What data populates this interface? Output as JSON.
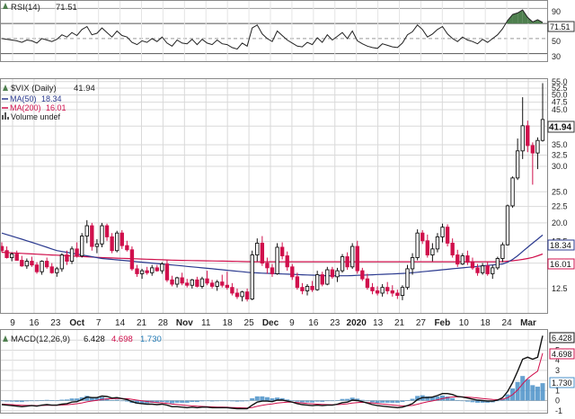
{
  "colors": {
    "grid": "#d9d9d9",
    "frame": "#888888",
    "text": "#222222",
    "bull": "#111111",
    "bear": "#d0104c",
    "ma50": "#2b3a8f",
    "ma200": "#d0104c",
    "rsi_line": "#222222",
    "rsi_fill": "#4e7f4e",
    "macd_line": "#111111",
    "macd_signal": "#d0104c",
    "macd_hist": "#4a90c8",
    "tag_text": "#111111",
    "macd_hist_label": "#1f78b4"
  },
  "rsi": {
    "label": "RSI(14)",
    "value": "71.51",
    "levels": [
      "90",
      "70",
      "50",
      "30"
    ],
    "ylim": [
      20,
      100
    ]
  },
  "price": {
    "symbol": "$VIX (Daily)",
    "value": "41.94",
    "ma50_label": "MA(50)",
    "ma50_value": "18.34",
    "ma200_label": "MA(200)",
    "ma200_value": "16.01",
    "volume_label": "Volume undef",
    "yticks": [
      "55.0",
      "52.5",
      "50.0",
      "47.5",
      "45.0",
      "40.0",
      "35.0",
      "32.5",
      "30.0",
      "25.0",
      "22.5",
      "20.0",
      "17.5",
      "15.0",
      "12.5"
    ],
    "last_tag": "41.94",
    "ma50_tag": "18.34",
    "ma200_tag": "16.01"
  },
  "xaxis": {
    "labels": [
      "9",
      "16",
      "23",
      "Oct",
      "7",
      "14",
      "21",
      "28",
      "Nov",
      "11",
      "18",
      "25",
      "Dec",
      "9",
      "16",
      "23",
      "2020",
      "13",
      "21",
      "27",
      "Feb",
      "10",
      "18",
      "24",
      "Mar"
    ]
  },
  "macd": {
    "label": "MACD(12,26,9)",
    "macd_value": "6.428",
    "signal_value": "4.698",
    "hist_value": "1.730",
    "yticks": [
      "6",
      "5",
      "4",
      "3",
      "2",
      "1",
      "0",
      "-1"
    ],
    "ylim": [
      -1.2,
      7
    ]
  },
  "chart_data": {
    "type": "candlestick",
    "title": "$VIX (Daily)",
    "ylim": [
      10.5,
      56
    ],
    "log_scale": true,
    "x_labels": [
      "9",
      "16",
      "23",
      "Oct",
      "7",
      "14",
      "21",
      "28",
      "Nov",
      "11",
      "18",
      "25",
      "Dec",
      "9",
      "16",
      "23",
      "2020",
      "13",
      "21",
      "27",
      "Feb",
      "10",
      "18",
      "24",
      "Mar"
    ],
    "ohlc": [
      [
        16.9,
        17.4,
        16.2,
        16.4
      ],
      [
        16.4,
        16.9,
        15.5,
        15.6
      ],
      [
        15.6,
        16.2,
        15.2,
        16.0
      ],
      [
        16.0,
        16.4,
        15.3,
        15.3
      ],
      [
        15.3,
        15.8,
        14.6,
        14.7
      ],
      [
        14.7,
        15.5,
        14.4,
        15.2
      ],
      [
        15.2,
        15.7,
        14.6,
        14.8
      ],
      [
        14.8,
        15.1,
        13.9,
        14.1
      ],
      [
        14.1,
        15.3,
        13.8,
        15.2
      ],
      [
        15.2,
        15.6,
        14.4,
        14.6
      ],
      [
        14.6,
        15.0,
        13.9,
        14.0
      ],
      [
        14.0,
        14.6,
        13.6,
        14.4
      ],
      [
        14.4,
        16.1,
        14.1,
        15.9
      ],
      [
        15.9,
        16.4,
        14.8,
        15.2
      ],
      [
        15.2,
        16.9,
        14.9,
        16.6
      ],
      [
        16.6,
        17.4,
        15.6,
        15.8
      ],
      [
        15.8,
        18.6,
        15.6,
        18.2
      ],
      [
        18.2,
        20.4,
        17.3,
        19.6
      ],
      [
        19.6,
        20.0,
        16.4,
        16.9
      ],
      [
        16.9,
        17.8,
        16.1,
        17.2
      ],
      [
        17.2,
        20.0,
        16.8,
        19.6
      ],
      [
        19.6,
        19.9,
        17.6,
        18.1
      ],
      [
        18.1,
        18.6,
        16.1,
        16.4
      ],
      [
        16.4,
        18.9,
        16.2,
        18.6
      ],
      [
        18.6,
        19.0,
        16.6,
        17.0
      ],
      [
        17.0,
        17.6,
        16.3,
        16.5
      ],
      [
        16.5,
        16.9,
        14.2,
        14.4
      ],
      [
        14.4,
        14.8,
        13.6,
        13.9
      ],
      [
        13.9,
        14.4,
        13.4,
        14.2
      ],
      [
        14.2,
        14.6,
        13.8,
        14.0
      ],
      [
        14.0,
        14.8,
        13.7,
        14.5
      ],
      [
        14.5,
        14.8,
        14.1,
        14.2
      ],
      [
        14.2,
        15.1,
        13.9,
        14.9
      ],
      [
        14.9,
        15.3,
        13.1,
        13.3
      ],
      [
        13.3,
        13.7,
        12.7,
        12.9
      ],
      [
        12.9,
        13.6,
        12.6,
        13.5
      ],
      [
        13.5,
        14.0,
        12.8,
        13.0
      ],
      [
        13.0,
        13.4,
        12.6,
        12.8
      ],
      [
        12.8,
        13.4,
        12.5,
        13.3
      ],
      [
        13.3,
        13.6,
        12.6,
        12.7
      ],
      [
        12.7,
        13.6,
        12.5,
        13.4
      ],
      [
        13.4,
        14.2,
        12.8,
        13.0
      ],
      [
        13.0,
        13.3,
        12.5,
        12.7
      ],
      [
        12.7,
        13.3,
        12.3,
        13.1
      ],
      [
        13.1,
        13.8,
        12.6,
        12.8
      ],
      [
        12.8,
        14.1,
        12.4,
        12.6
      ],
      [
        12.6,
        13.0,
        11.9,
        12.1
      ],
      [
        12.1,
        12.5,
        11.6,
        11.8
      ],
      [
        11.8,
        12.3,
        11.4,
        12.2
      ],
      [
        12.2,
        12.5,
        11.4,
        11.6
      ],
      [
        11.6,
        16.4,
        11.5,
        15.9
      ],
      [
        15.9,
        17.9,
        15.2,
        17.3
      ],
      [
        17.3,
        18.2,
        14.7,
        15.0
      ],
      [
        15.0,
        15.6,
        13.9,
        14.5
      ],
      [
        14.5,
        14.9,
        13.6,
        13.9
      ],
      [
        13.9,
        17.3,
        13.8,
        16.8
      ],
      [
        16.8,
        17.4,
        15.4,
        15.8
      ],
      [
        15.8,
        16.3,
        14.2,
        14.6
      ],
      [
        14.6,
        14.9,
        13.3,
        13.6
      ],
      [
        13.6,
        14.0,
        12.4,
        12.6
      ],
      [
        12.6,
        13.0,
        12.0,
        12.3
      ],
      [
        12.3,
        12.9,
        11.9,
        12.7
      ],
      [
        12.7,
        13.2,
        12.2,
        12.4
      ],
      [
        12.4,
        14.2,
        12.3,
        13.8
      ],
      [
        13.8,
        14.1,
        12.7,
        12.9
      ],
      [
        12.9,
        14.6,
        12.8,
        14.3
      ],
      [
        14.3,
        14.6,
        13.4,
        13.6
      ],
      [
        13.6,
        14.5,
        13.1,
        14.2
      ],
      [
        14.2,
        16.0,
        14.0,
        15.7
      ],
      [
        15.7,
        16.2,
        14.3,
        14.6
      ],
      [
        14.6,
        17.3,
        14.4,
        16.9
      ],
      [
        16.9,
        17.6,
        13.9,
        14.2
      ],
      [
        14.2,
        14.5,
        13.2,
        13.4
      ],
      [
        13.4,
        13.9,
        12.4,
        12.6
      ],
      [
        12.6,
        13.0,
        12.0,
        12.3
      ],
      [
        12.3,
        12.7,
        11.9,
        12.1
      ],
      [
        12.1,
        12.9,
        11.8,
        12.6
      ],
      [
        12.6,
        13.1,
        12.0,
        12.3
      ],
      [
        12.3,
        12.8,
        11.8,
        12.1
      ],
      [
        12.1,
        12.4,
        11.6,
        11.9
      ],
      [
        11.9,
        12.8,
        11.5,
        12.6
      ],
      [
        12.6,
        14.8,
        12.4,
        14.4
      ],
      [
        14.4,
        16.1,
        13.8,
        15.6
      ],
      [
        15.6,
        19.1,
        15.3,
        18.6
      ],
      [
        18.6,
        19.0,
        17.2,
        17.6
      ],
      [
        17.6,
        18.4,
        15.6,
        15.9
      ],
      [
        15.9,
        17.3,
        15.2,
        16.6
      ],
      [
        16.6,
        18.6,
        16.2,
        18.1
      ],
      [
        18.1,
        19.9,
        17.4,
        19.4
      ],
      [
        19.4,
        19.8,
        16.9,
        17.3
      ],
      [
        17.3,
        17.9,
        15.6,
        15.9
      ],
      [
        15.9,
        16.5,
        14.6,
        14.9
      ],
      [
        14.9,
        16.1,
        14.8,
        15.8
      ],
      [
        15.8,
        16.4,
        14.8,
        15.1
      ],
      [
        15.1,
        15.6,
        14.3,
        14.5
      ],
      [
        14.5,
        14.9,
        13.7,
        14.0
      ],
      [
        14.0,
        15.0,
        13.8,
        14.7
      ],
      [
        14.7,
        15.1,
        13.7,
        13.9
      ],
      [
        13.9,
        14.8,
        13.4,
        14.5
      ],
      [
        14.5,
        15.7,
        14.3,
        15.5
      ],
      [
        15.5,
        17.4,
        15.1,
        17.1
      ],
      [
        17.1,
        22.8,
        17.0,
        22.6
      ],
      [
        22.6,
        27.9,
        22.3,
        27.6
      ],
      [
        27.6,
        36.6,
        27.2,
        33.5
      ],
      [
        33.5,
        49.2,
        31.6,
        40.1
      ],
      [
        40.1,
        41.6,
        33.2,
        34.8
      ],
      [
        34.8,
        35.6,
        26.3,
        33.0
      ],
      [
        33.0,
        36.9,
        29.4,
        36.1
      ],
      [
        36.1,
        54.4,
        35.8,
        41.94
      ]
    ],
    "ma50": [
      18.6,
      18.4,
      18.2,
      18.0,
      17.8,
      17.6,
      17.4,
      17.2,
      17.0,
      16.8,
      16.6,
      16.4,
      16.3,
      16.2,
      16.1,
      16.0,
      15.9,
      15.8,
      15.7,
      15.6,
      15.5,
      15.45,
      15.4,
      15.35,
      15.3,
      15.25,
      15.2,
      15.15,
      15.1,
      15.05,
      15.0,
      14.95,
      14.9,
      14.85,
      14.8,
      14.75,
      14.7,
      14.65,
      14.6,
      14.55,
      14.5,
      14.45,
      14.4,
      14.35,
      14.3,
      14.25,
      14.2,
      14.15,
      14.1,
      14.05,
      14.0,
      13.98,
      13.96,
      13.94,
      13.92,
      13.9,
      13.88,
      13.86,
      13.84,
      13.82,
      13.8,
      13.78,
      13.76,
      13.74,
      13.72,
      13.7,
      13.7,
      13.7,
      13.7,
      13.7,
      13.72,
      13.74,
      13.76,
      13.78,
      13.8,
      13.82,
      13.84,
      13.86,
      13.88,
      13.9,
      13.93,
      13.96,
      14.0,
      14.05,
      14.1,
      14.15,
      14.2,
      14.25,
      14.3,
      14.35,
      14.4,
      14.45,
      14.5,
      14.55,
      14.6,
      14.65,
      14.7,
      14.75,
      14.8,
      14.85,
      14.9,
      15.1,
      15.4,
      15.8,
      16.3,
      16.8,
      17.3,
      17.8,
      18.34
    ],
    "ma200": [
      16.2,
      16.17,
      16.14,
      16.11,
      16.08,
      16.05,
      16.02,
      15.99,
      15.96,
      15.93,
      15.9,
      15.87,
      15.84,
      15.81,
      15.78,
      15.75,
      15.72,
      15.69,
      15.66,
      15.63,
      15.6,
      15.58,
      15.56,
      15.54,
      15.52,
      15.5,
      15.48,
      15.46,
      15.44,
      15.42,
      15.4,
      15.38,
      15.36,
      15.34,
      15.32,
      15.3,
      15.29,
      15.28,
      15.27,
      15.26,
      15.25,
      15.24,
      15.23,
      15.22,
      15.21,
      15.2,
      15.19,
      15.18,
      15.17,
      15.16,
      15.15,
      15.15,
      15.15,
      15.15,
      15.15,
      15.15,
      15.15,
      15.15,
      15.15,
      15.15,
      15.15,
      15.15,
      15.15,
      15.15,
      15.15,
      15.15,
      15.15,
      15.15,
      15.15,
      15.15,
      15.15,
      15.15,
      15.15,
      15.15,
      15.15,
      15.15,
      15.15,
      15.15,
      15.15,
      15.15,
      15.15,
      15.15,
      15.15,
      15.15,
      15.15,
      15.15,
      15.15,
      15.15,
      15.15,
      15.15,
      15.15,
      15.15,
      15.15,
      15.15,
      15.15,
      15.15,
      15.15,
      15.15,
      15.15,
      15.15,
      15.17,
      15.2,
      15.25,
      15.32,
      15.4,
      15.5,
      15.62,
      15.8,
      16.01
    ],
    "rsi": [
      50,
      49,
      48,
      47,
      45,
      48,
      47,
      44,
      50,
      48,
      46,
      49,
      55,
      52,
      58,
      54,
      62,
      66,
      55,
      57,
      64,
      58,
      52,
      60,
      54,
      52,
      45,
      42,
      47,
      45,
      50,
      46,
      52,
      44,
      40,
      48,
      44,
      43,
      49,
      42,
      49,
      44,
      42,
      48,
      43,
      42,
      38,
      36,
      44,
      40,
      64,
      68,
      56,
      50,
      46,
      60,
      54,
      48,
      44,
      40,
      39,
      45,
      42,
      51,
      45,
      55,
      48,
      53,
      58,
      50,
      60,
      47,
      43,
      40,
      38,
      37,
      43,
      41,
      39,
      38,
      44,
      55,
      59,
      68,
      62,
      52,
      56,
      62,
      66,
      56,
      50,
      46,
      52,
      48,
      46,
      43,
      49,
      45,
      50,
      55,
      63,
      74,
      82,
      84,
      88,
      78,
      72,
      75,
      71.51
    ],
    "macd": [
      -0.4,
      -0.45,
      -0.5,
      -0.55,
      -0.6,
      -0.55,
      -0.5,
      -0.55,
      -0.45,
      -0.4,
      -0.45,
      -0.45,
      -0.35,
      -0.3,
      -0.15,
      -0.1,
      0.1,
      0.35,
      0.3,
      0.3,
      0.45,
      0.4,
      0.25,
      0.3,
      0.2,
      0.1,
      -0.1,
      -0.25,
      -0.3,
      -0.35,
      -0.35,
      -0.4,
      -0.35,
      -0.45,
      -0.6,
      -0.6,
      -0.65,
      -0.7,
      -0.65,
      -0.7,
      -0.65,
      -0.65,
      -0.7,
      -0.7,
      -0.7,
      -0.7,
      -0.75,
      -0.8,
      -0.8,
      -0.8,
      -0.45,
      -0.15,
      -0.05,
      -0.05,
      -0.1,
      0.05,
      0.05,
      -0.05,
      -0.15,
      -0.3,
      -0.4,
      -0.45,
      -0.5,
      -0.45,
      -0.5,
      -0.45,
      -0.45,
      -0.35,
      -0.2,
      -0.15,
      0.05,
      0.0,
      -0.1,
      -0.25,
      -0.4,
      -0.5,
      -0.55,
      -0.6,
      -0.65,
      -0.7,
      -0.65,
      -0.5,
      -0.3,
      0.1,
      0.3,
      0.3,
      0.35,
      0.5,
      0.7,
      0.7,
      0.6,
      0.4,
      0.35,
      0.25,
      0.15,
      0.05,
      0.0,
      -0.05,
      -0.05,
      0.05,
      0.3,
      0.9,
      1.8,
      2.9,
      4.1,
      4.3,
      4.1,
      4.3,
      6.428
    ],
    "signal": [
      -0.35,
      -0.37,
      -0.4,
      -0.43,
      -0.46,
      -0.48,
      -0.48,
      -0.5,
      -0.49,
      -0.47,
      -0.47,
      -0.46,
      -0.44,
      -0.41,
      -0.36,
      -0.31,
      -0.23,
      -0.12,
      -0.04,
      0.03,
      0.11,
      0.17,
      0.19,
      0.21,
      0.21,
      0.19,
      0.13,
      0.05,
      -0.02,
      -0.09,
      -0.14,
      -0.19,
      -0.22,
      -0.27,
      -0.34,
      -0.39,
      -0.44,
      -0.49,
      -0.52,
      -0.56,
      -0.58,
      -0.6,
      -0.62,
      -0.64,
      -0.65,
      -0.66,
      -0.68,
      -0.7,
      -0.72,
      -0.74,
      -0.68,
      -0.57,
      -0.47,
      -0.39,
      -0.33,
      -0.25,
      -0.19,
      -0.16,
      -0.16,
      -0.19,
      -0.23,
      -0.28,
      -0.32,
      -0.35,
      -0.38,
      -0.4,
      -0.41,
      -0.4,
      -0.36,
      -0.32,
      -0.24,
      -0.19,
      -0.17,
      -0.19,
      -0.23,
      -0.28,
      -0.34,
      -0.39,
      -0.44,
      -0.49,
      -0.52,
      -0.52,
      -0.48,
      -0.36,
      -0.23,
      -0.12,
      -0.03,
      0.08,
      0.2,
      0.3,
      0.36,
      0.37,
      0.37,
      0.35,
      0.31,
      0.26,
      0.21,
      0.16,
      0.12,
      0.1,
      0.14,
      0.29,
      0.59,
      1.05,
      1.66,
      2.19,
      2.57,
      2.92,
      4.698
    ]
  }
}
